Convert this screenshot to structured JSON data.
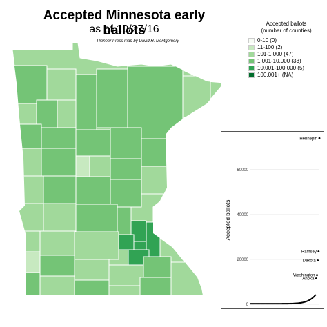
{
  "title": "Accepted Minnesota early ballots",
  "subtitle": "as of 10/27/16",
  "credit": "Pioneer Press map by David H. Montgomery",
  "legend": {
    "title_line1": "Accepted ballots",
    "title_line2": "(number of counties)",
    "items": [
      {
        "label": "0-10 (0)",
        "color": "#f7fcf5"
      },
      {
        "label": "11-100 (2)",
        "color": "#c7e9c0"
      },
      {
        "label": "101-1,000 (47)",
        "color": "#a1d99b"
      },
      {
        "label": "1,001-10,000 (33)",
        "color": "#74c476"
      },
      {
        "label": "10,001-100,000 (5)",
        "color": "#31a354"
      },
      {
        "label": "100,001+ (NA)",
        "color": "#006d2c"
      }
    ]
  },
  "chart_data": {
    "type": "scatter",
    "ylabel": "Accepted ballots",
    "xlabel": "",
    "ylim": [
      0,
      75000
    ],
    "yticks": [
      0,
      20000,
      40000,
      60000
    ],
    "grid": true,
    "labeled_points": [
      {
        "label": "Hennepin",
        "rank": 87,
        "value": 74000
      },
      {
        "label": "Ramsey",
        "rank": 86,
        "value": 23500
      },
      {
        "label": "Dakota",
        "rank": 85,
        "value": 19500
      },
      {
        "label": "Washington",
        "rank": 84,
        "value": 13000
      },
      {
        "label": "Anoka",
        "rank": 83,
        "value": 11500
      }
    ]
  }
}
